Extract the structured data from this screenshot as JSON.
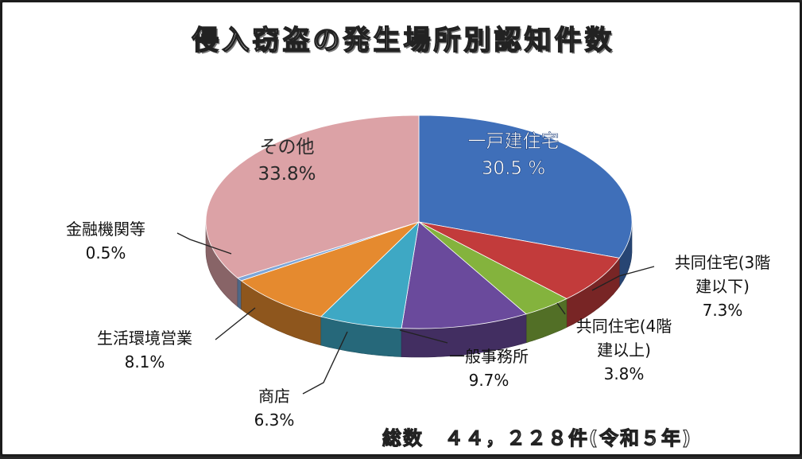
{
  "chart_data": {
    "type": "pie",
    "title": "侵入窃盗の発生場所別認知件数",
    "note": "総数　４４，２２８件(令和５年)",
    "slices": [
      {
        "label": "一戸建住宅",
        "label_lines": [
          "一戸建住宅"
        ],
        "value": 30.5,
        "text": "30.5 %",
        "color": "#3f6fb9"
      },
      {
        "label": "共同住宅(3階建以下)",
        "label_lines": [
          "共同住宅(3階",
          "建以下)"
        ],
        "value": 7.3,
        "text": "7.3%",
        "color": "#c23b3b"
      },
      {
        "label": "共同住宅(4階建以上)",
        "label_lines": [
          "共同住宅(4階",
          "建以上)"
        ],
        "value": 3.8,
        "text": "3.8%",
        "color": "#84b33d"
      },
      {
        "label": "一般事務所",
        "label_lines": [
          "一般事務所"
        ],
        "value": 9.7,
        "text": "9.7%",
        "color": "#6a4a9c"
      },
      {
        "label": "商店",
        "label_lines": [
          "商店"
        ],
        "value": 6.3,
        "text": "6.3%",
        "color": "#3ea8c4"
      },
      {
        "label": "生活環境営業",
        "label_lines": [
          "生活環境営業"
        ],
        "value": 8.1,
        "text": "8.1%",
        "color": "#e58a2f"
      },
      {
        "label": "金融機関等",
        "label_lines": [
          "金融機関等"
        ],
        "value": 0.5,
        "text": "0.5%",
        "color": "#7ea6d8"
      },
      {
        "label": "その他",
        "label_lines": [
          "その他"
        ],
        "value": 33.8,
        "text": "33.8%",
        "color": "#dca2a6"
      }
    ]
  }
}
